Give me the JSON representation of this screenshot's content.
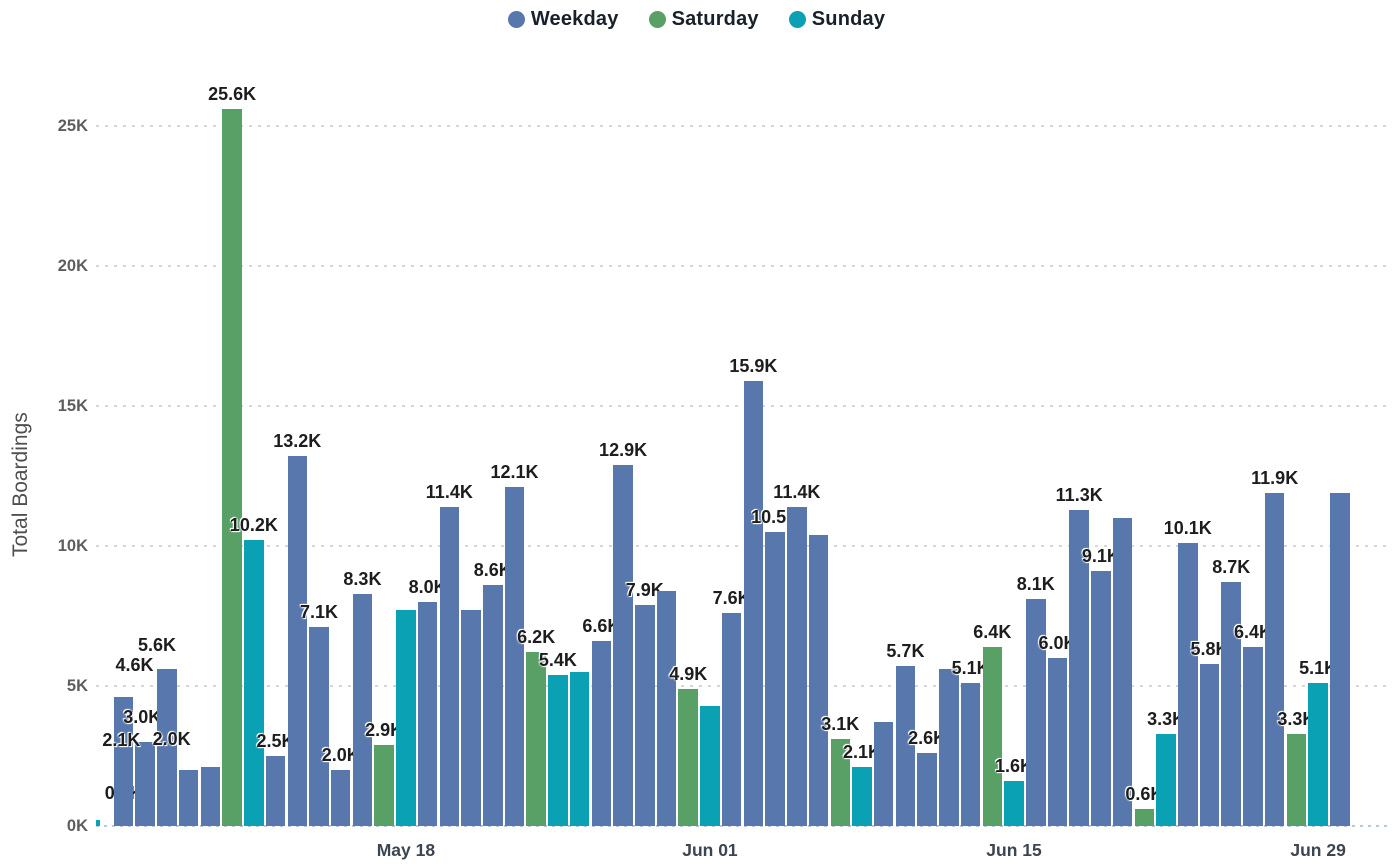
{
  "legend": {
    "items": [
      {
        "label": "Weekday",
        "color": "#5878ad"
      },
      {
        "label": "Saturday",
        "color": "#58a066"
      },
      {
        "label": "Sunday",
        "color": "#0aa1b5"
      }
    ]
  },
  "chart_data": {
    "type": "bar",
    "title": "",
    "xlabel": "",
    "ylabel": "Total Boardings",
    "ylim": [
      0,
      26.5
    ],
    "grid": true,
    "legend_position": "top-center",
    "y_ticks": [
      "0K",
      "5K",
      "10K",
      "15K",
      "20K",
      "25K"
    ],
    "x_ticks": [
      {
        "label": "May 18",
        "bar_index": 14
      },
      {
        "label": "Jun 01",
        "bar_index": 28
      },
      {
        "label": "Jun 15",
        "bar_index": 42
      },
      {
        "label": "Jun 29",
        "bar_index": 56
      }
    ],
    "series": [
      {
        "name": "Weekday",
        "color": "#5878ad"
      },
      {
        "name": "Saturday",
        "color": "#58a066"
      },
      {
        "name": "Sunday",
        "color": "#0aa1b5"
      }
    ],
    "bars": [
      {
        "series": "Sunday",
        "value": 0.2,
        "label": "0.2K",
        "dx": 22,
        "dy": 12,
        "clipped": true
      },
      {
        "series": "Weekday",
        "value": 4.6,
        "label": "4.6K",
        "dx": 11,
        "dy": 17
      },
      {
        "series": "Weekday",
        "value": 3.0,
        "label": "3.0K",
        "dx": -3,
        "dy": 10
      },
      {
        "series": "Weekday",
        "value": 5.6,
        "label": "5.6K",
        "dx": -10,
        "dy": 9
      },
      {
        "series": "Weekday",
        "value": 2.0,
        "label": "2.0K",
        "dx": -17,
        "dy": 16
      },
      {
        "series": "Weekday",
        "value": 2.1,
        "label": "2.1K",
        "dx": -89,
        "dy": 12
      },
      {
        "series": "Saturday",
        "value": 25.6,
        "label": "25.6K"
      },
      {
        "series": "Sunday",
        "value": 10.2,
        "label": "10.2K"
      },
      {
        "series": "Weekday",
        "value": 2.5,
        "label": "2.5K"
      },
      {
        "series": "Weekday",
        "value": 13.2,
        "label": "13.2K"
      },
      {
        "series": "Weekday",
        "value": 7.1,
        "label": "7.1K"
      },
      {
        "series": "Weekday",
        "value": 2.0,
        "label": "2.0K"
      },
      {
        "series": "Weekday",
        "value": 8.3,
        "label": "8.3K"
      },
      {
        "series": "Saturday",
        "value": 2.9,
        "label": "2.9K"
      },
      {
        "series": "Sunday",
        "value": 7.7,
        "label": null
      },
      {
        "series": "Weekday",
        "value": 8.0,
        "label": "8.0K"
      },
      {
        "series": "Weekday",
        "value": 11.4,
        "label": "11.4K"
      },
      {
        "series": "Weekday",
        "value": 7.7,
        "label": null
      },
      {
        "series": "Weekday",
        "value": 8.6,
        "label": "8.6K"
      },
      {
        "series": "Weekday",
        "value": 12.1,
        "label": "12.1K"
      },
      {
        "series": "Saturday",
        "value": 6.2,
        "label": "6.2K"
      },
      {
        "series": "Sunday",
        "value": 5.4,
        "label": "5.4K"
      },
      {
        "series": "Sunday",
        "value": 5.5,
        "label": null
      },
      {
        "series": "Weekday",
        "value": 6.6,
        "label": "6.6K"
      },
      {
        "series": "Weekday",
        "value": 12.9,
        "label": "12.9K"
      },
      {
        "series": "Weekday",
        "value": 7.9,
        "label": "7.9K"
      },
      {
        "series": "Weekday",
        "value": 8.4,
        "label": null
      },
      {
        "series": "Saturday",
        "value": 4.9,
        "label": "4.9K"
      },
      {
        "series": "Sunday",
        "value": 4.3,
        "label": null
      },
      {
        "series": "Weekday",
        "value": 7.6,
        "label": "7.6K"
      },
      {
        "series": "Weekday",
        "value": 15.9,
        "label": "15.9K"
      },
      {
        "series": "Weekday",
        "value": 10.5,
        "label": "10.5K"
      },
      {
        "series": "Weekday",
        "value": 11.4,
        "label": "11.4K"
      },
      {
        "series": "Weekday",
        "value": 10.4,
        "label": null
      },
      {
        "series": "Saturday",
        "value": 3.1,
        "label": "3.1K"
      },
      {
        "series": "Sunday",
        "value": 2.1,
        "label": "2.1K"
      },
      {
        "series": "Weekday",
        "value": 3.7,
        "label": null
      },
      {
        "series": "Weekday",
        "value": 5.7,
        "label": "5.7K"
      },
      {
        "series": "Weekday",
        "value": 2.6,
        "label": "2.6K"
      },
      {
        "series": "Weekday",
        "value": 5.6,
        "label": null
      },
      {
        "series": "Weekday",
        "value": 5.1,
        "label": "5.1K"
      },
      {
        "series": "Saturday",
        "value": 6.4,
        "label": "6.4K"
      },
      {
        "series": "Sunday",
        "value": 1.6,
        "label": "1.6K"
      },
      {
        "series": "Weekday",
        "value": 8.1,
        "label": "8.1K"
      },
      {
        "series": "Weekday",
        "value": 6.0,
        "label": "6.0K"
      },
      {
        "series": "Weekday",
        "value": 11.3,
        "label": "11.3K"
      },
      {
        "series": "Weekday",
        "value": 9.1,
        "label": "9.1K"
      },
      {
        "series": "Weekday",
        "value": 11.0,
        "label": null
      },
      {
        "series": "Saturday",
        "value": 0.6,
        "label": "0.6K"
      },
      {
        "series": "Sunday",
        "value": 3.3,
        "label": "3.3K"
      },
      {
        "series": "Weekday",
        "value": 10.1,
        "label": "10.1K"
      },
      {
        "series": "Weekday",
        "value": 5.8,
        "label": "5.8K"
      },
      {
        "series": "Weekday",
        "value": 8.7,
        "label": "8.7K"
      },
      {
        "series": "Weekday",
        "value": 6.4,
        "label": "6.4K"
      },
      {
        "series": "Weekday",
        "value": 11.9,
        "label": "11.9K"
      },
      {
        "series": "Saturday",
        "value": 3.3,
        "label": "3.3K"
      },
      {
        "series": "Sunday",
        "value": 5.1,
        "label": "5.1K"
      },
      {
        "series": "Weekday",
        "value": 11.9,
        "label": null
      }
    ]
  }
}
